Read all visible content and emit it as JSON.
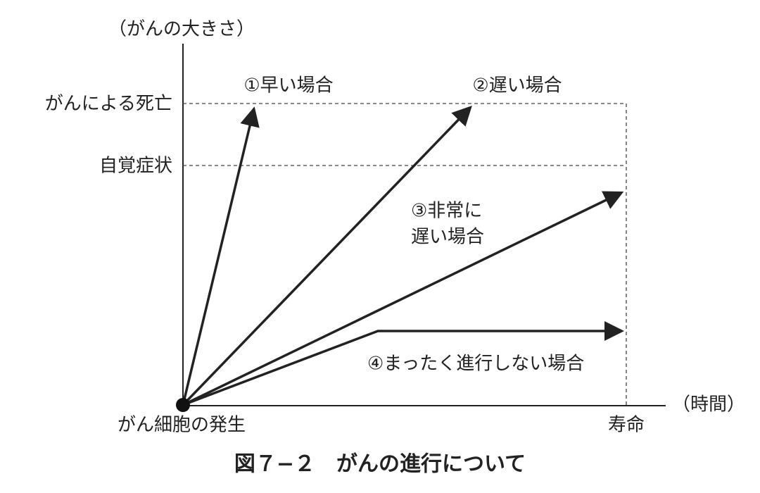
{
  "y_axis_label": "（がんの大きさ）",
  "x_axis_label": "（時間）",
  "levels": [
    "がんによる死亡",
    "自覚症状"
  ],
  "origin_label": "がん細胞の発生",
  "lifespan_label": "寿命",
  "cases": [
    {
      "lines": [
        "①早い場合"
      ]
    },
    {
      "lines": [
        "②遅い場合"
      ]
    },
    {
      "lines": [
        "③非常に",
        "遅い場合"
      ]
    },
    {
      "lines": [
        "④まったく進行しない場合"
      ]
    }
  ],
  "caption": "図７−２　がんの進行について"
}
